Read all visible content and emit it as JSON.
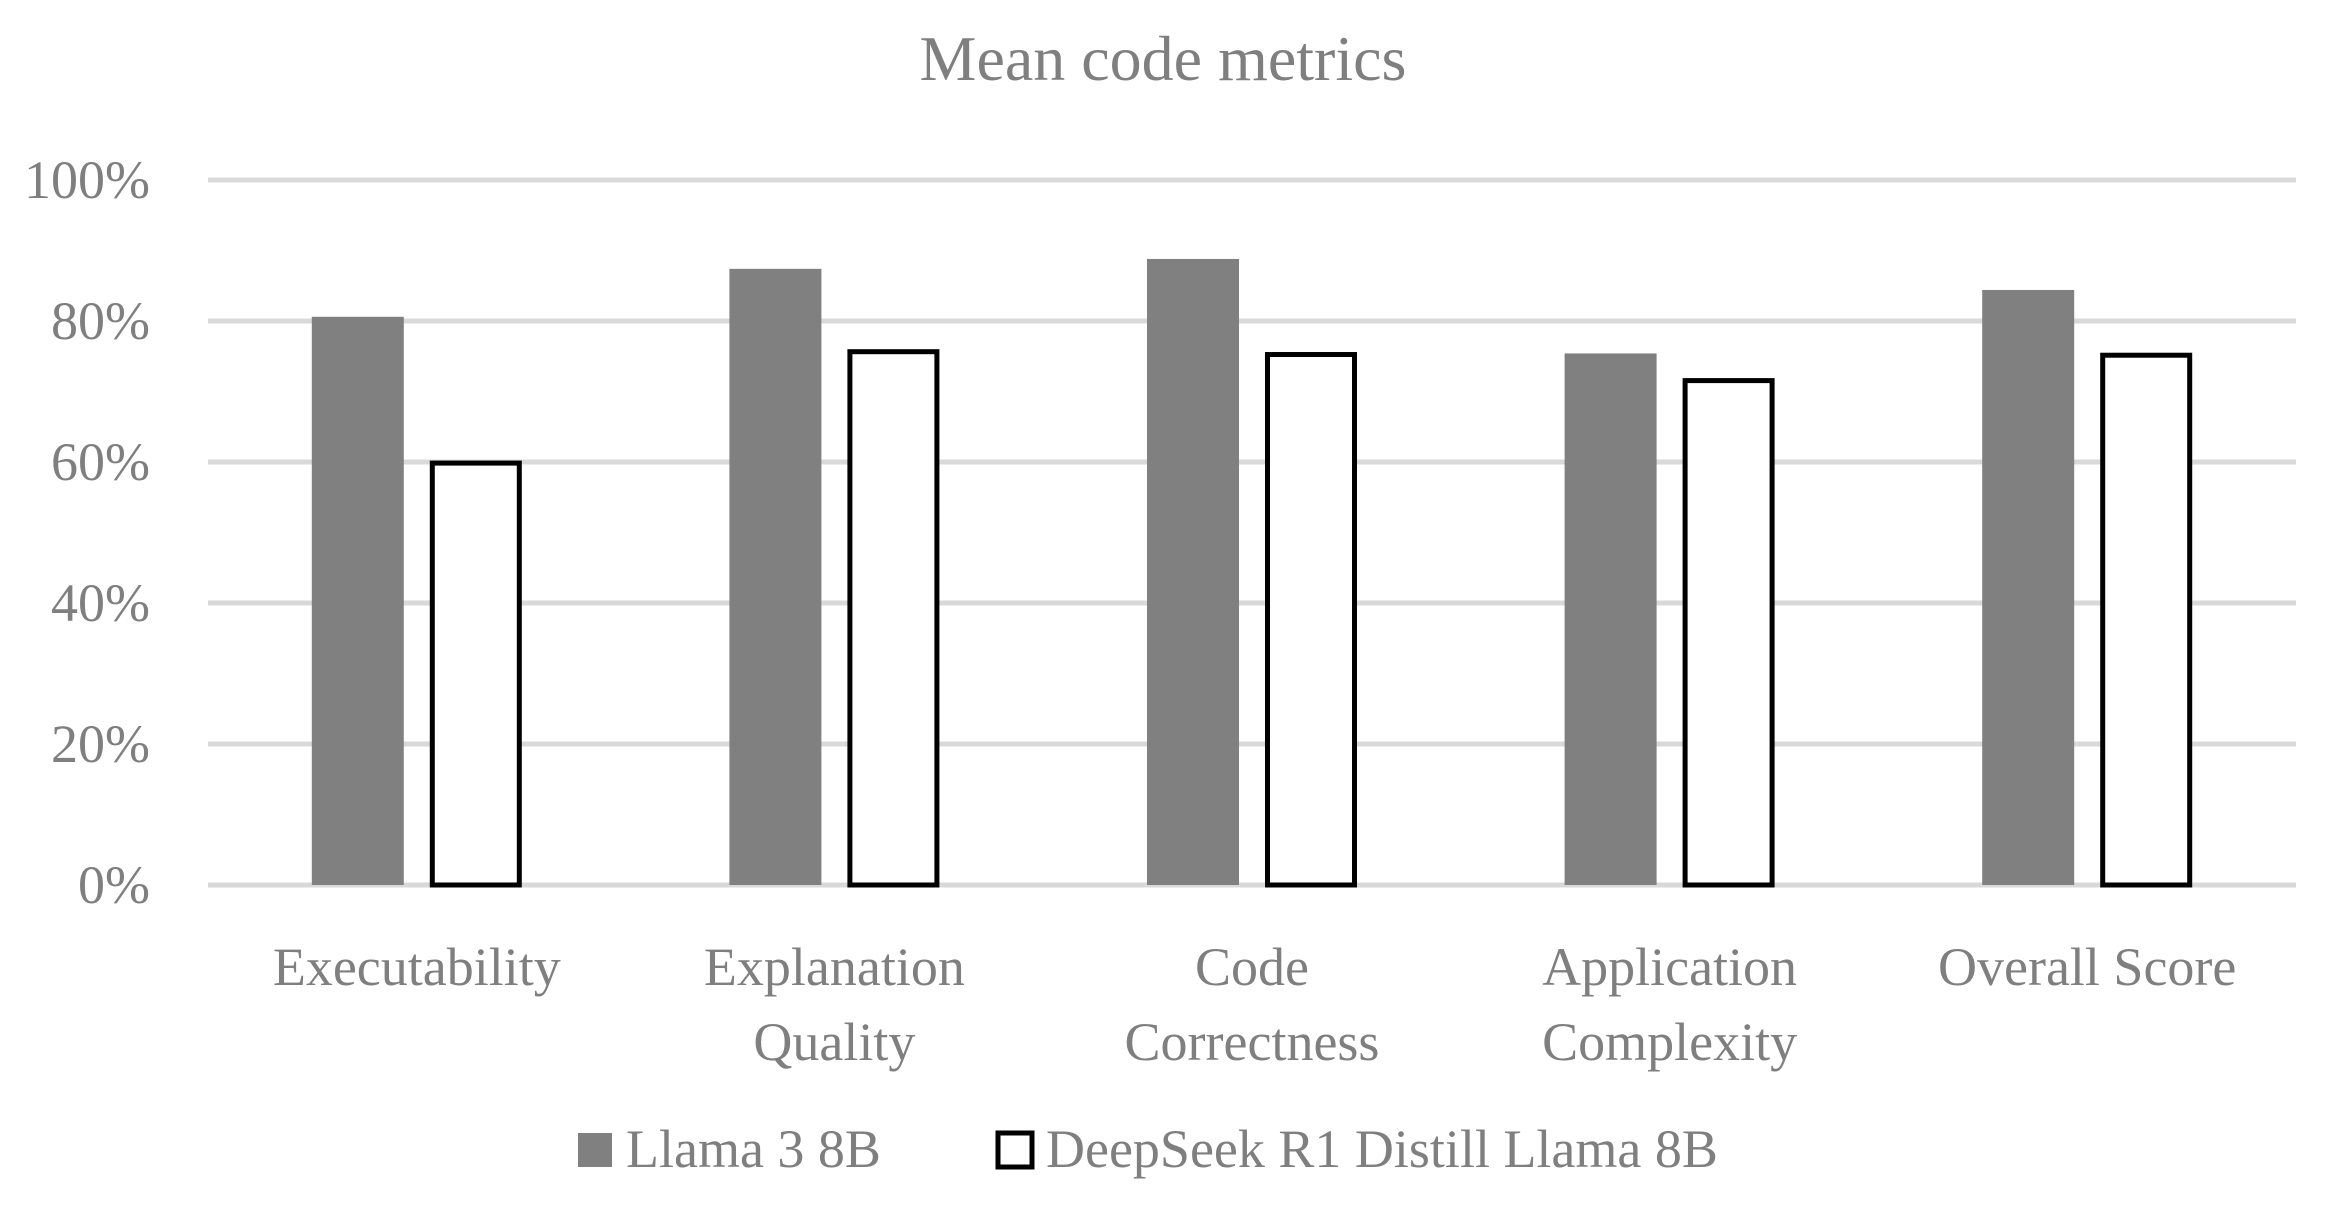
{
  "chart_data": {
    "type": "bar",
    "title": "Mean code metrics",
    "categories": [
      [
        "Executability"
      ],
      [
        "Explanation",
        "Quality"
      ],
      [
        "Code",
        "Correctness"
      ],
      [
        "Application",
        "Complexity"
      ],
      [
        "Overall Score"
      ]
    ],
    "series": [
      {
        "name": "Llama 3 8B",
        "fill": "#808080",
        "stroke": "none",
        "values": [
          80.6,
          87.4,
          88.8,
          75.4,
          84.4
        ]
      },
      {
        "name": "DeepSeek R1 Distill Llama 8B",
        "fill": "#ffffff",
        "stroke": "#000000",
        "values": [
          60.2,
          76.0,
          75.6,
          71.9,
          75.5
        ]
      }
    ],
    "ylim": [
      0,
      100
    ],
    "yticks": [
      0,
      20,
      40,
      60,
      80,
      100
    ],
    "ytick_labels": [
      "0%",
      "20%",
      "40%",
      "60%",
      "80%",
      "100%"
    ],
    "grid": true,
    "legend": "bottom",
    "xlabel": "",
    "ylabel": ""
  }
}
